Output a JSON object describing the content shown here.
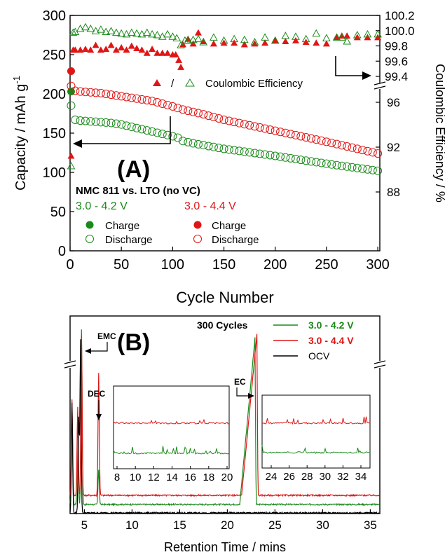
{
  "colors": {
    "green": "#1a8a1a",
    "red": "#e01515",
    "black": "#000000"
  },
  "chart_data": [
    {
      "type": "scatter",
      "panel": "(A)",
      "xlabel": "Cycle Number",
      "ylabel": "Capacity / mAh g",
      "ylabel_sup": "-1",
      "y2label": "Coulombic Efficiency / %",
      "xlim": [
        0,
        302
      ],
      "ylim": [
        0,
        300
      ],
      "xticks": [
        "0",
        "50",
        "100",
        "150",
        "200",
        "250",
        "300"
      ],
      "yticks": [
        "0",
        "50",
        "100",
        "150",
        "200",
        "250",
        "300"
      ],
      "y2ticks_upper": [
        "99.4",
        "99.6",
        "99.8",
        "100.0",
        "100.2"
      ],
      "y2ticks_lower": [
        "88",
        "92",
        "96"
      ],
      "legend": {
        "cell": "NMC 811 vs. LTO (no VC)",
        "range_green": "3.0 - 4.2 V",
        "range_red": "3.0 - 4.4 V",
        "charge": "Charge",
        "discharge": "Discharge",
        "ce_sep": "/",
        "ce_label": "Coulombic Efficiency"
      },
      "series": [
        {
          "voltage": "3.0 - 4.2 V",
          "kind": "Charge",
          "x": [
            1
          ],
          "y": [
            203
          ]
        },
        {
          "voltage": "3.0 - 4.4 V",
          "kind": "Charge",
          "x": [
            1
          ],
          "y": [
            229
          ]
        },
        {
          "voltage": "3.0 - 4.2 V",
          "kind": "Discharge",
          "x": [
            1,
            5,
            10,
            20,
            30,
            40,
            50,
            60,
            70,
            80,
            90,
            100,
            104,
            110,
            120,
            150,
            200,
            250,
            300
          ],
          "y": [
            185,
            167,
            166,
            165,
            164,
            163,
            161,
            158,
            155,
            152,
            149,
            146,
            145,
            140,
            137,
            130,
            121,
            111,
            102
          ]
        },
        {
          "voltage": "3.0 - 4.4 V",
          "kind": "Discharge",
          "x": [
            1,
            5,
            10,
            30,
            50,
            80,
            100,
            110,
            130,
            150,
            200,
            250,
            300
          ],
          "y": [
            210,
            204,
            203,
            201,
            197,
            191,
            184,
            180,
            174,
            167,
            153,
            139,
            124
          ]
        },
        {
          "voltage": "3.0 - 4.4 V",
          "kind": "Coulombic Efficiency",
          "x": [
            1,
            3,
            5,
            10,
            15,
            20,
            25,
            30,
            35,
            40,
            45,
            50,
            55,
            60,
            65,
            70,
            75,
            80,
            85,
            90,
            95,
            100,
            103,
            106,
            108,
            110,
            115,
            120,
            125,
            130,
            140,
            150,
            160,
            170,
            180,
            190,
            200,
            210,
            220,
            230,
            240,
            250,
            260,
            265,
            270,
            280,
            290,
            300
          ],
          "y": [
            121,
            256,
            256,
            256,
            257,
            256,
            262,
            256,
            257,
            262,
            256,
            259,
            256,
            261,
            258,
            256,
            252,
            257,
            252,
            252,
            252,
            250,
            250,
            243,
            234,
            263,
            270,
            264,
            278,
            267,
            264,
            265,
            265,
            263,
            264,
            265,
            268,
            267,
            268,
            266,
            265,
            264,
            272,
            274,
            274,
            272,
            272,
            272
          ]
        },
        {
          "voltage": "3.0 - 4.2 V",
          "kind": "Coulombic Efficiency",
          "x": [
            1,
            3,
            5,
            10,
            15,
            20,
            25,
            30,
            35,
            40,
            45,
            50,
            55,
            60,
            65,
            70,
            75,
            80,
            85,
            90,
            95,
            100,
            104,
            108,
            112,
            115,
            120,
            125,
            130,
            140,
            150,
            160,
            170,
            180,
            190,
            200,
            210,
            220,
            230,
            240,
            250,
            260,
            265,
            270,
            280,
            290,
            300
          ],
          "y": [
            108,
            278,
            279,
            283,
            285,
            283,
            280,
            282,
            279,
            280,
            278,
            277,
            276,
            278,
            277,
            276,
            278,
            276,
            275,
            273,
            276,
            273,
            271,
            262,
            268,
            268,
            269,
            270,
            266,
            272,
            268,
            270,
            269,
            266,
            272,
            268,
            274,
            273,
            270,
            277,
            271,
            272,
            272,
            267,
            275,
            276,
            276
          ]
        }
      ]
    },
    {
      "type": "line",
      "panel": "(B)",
      "xlabel": "Retention Time / mins",
      "xlim": [
        3.5,
        36
      ],
      "xticks": [
        "5",
        "10",
        "15",
        "20",
        "25",
        "30",
        "35"
      ],
      "legend": {
        "title": "300 Cycles",
        "entries": [
          "3.0 - 4.2 V",
          "3.0 - 4.4 V",
          "OCV"
        ]
      },
      "annotations": [
        "EMC",
        "DEC",
        "EC"
      ],
      "inset1_ticks": [
        "8",
        "10",
        "12",
        "14",
        "16",
        "18",
        "20"
      ],
      "inset2_ticks": [
        "24",
        "26",
        "28",
        "30",
        "32",
        "34"
      ],
      "series": [
        {
          "name": "3.0 - 4.2 V",
          "peaks": [
            [
              3.7,
              0.55
            ],
            [
              4.3,
              0.5
            ],
            [
              4.7,
              1.0
            ],
            [
              6.5,
              0.2
            ],
            [
              22.9,
              0.95
            ]
          ]
        },
        {
          "name": "3.0 - 4.4 V",
          "peaks": [
            [
              3.7,
              0.58
            ],
            [
              4.3,
              0.53
            ],
            [
              4.7,
              0.96
            ],
            [
              6.5,
              0.74
            ],
            [
              23.1,
              0.97
            ]
          ]
        },
        {
          "name": "OCV",
          "peaks": [
            [
              3.7,
              0.6
            ],
            [
              4.4,
              0.52
            ],
            [
              4.6,
              0.94
            ]
          ]
        }
      ]
    }
  ]
}
